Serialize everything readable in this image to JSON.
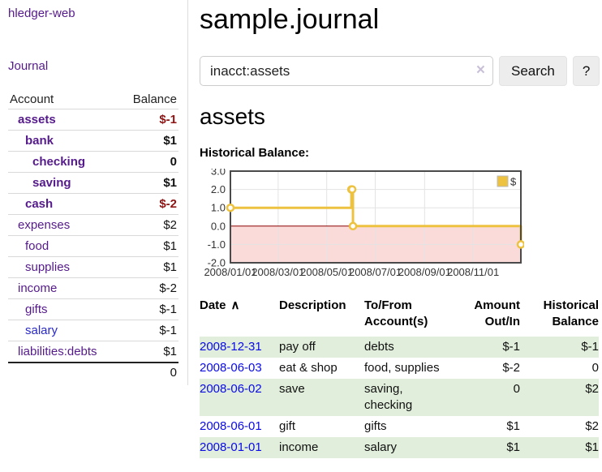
{
  "sidebar": {
    "brand": "hledger-web",
    "journal_link": "Journal",
    "accounts_table": {
      "headers": [
        "Account",
        "Balance"
      ],
      "rows": [
        {
          "name": "assets",
          "indent": 0,
          "bold": true,
          "name_color": "purple",
          "balance": "$-1",
          "negative": true
        },
        {
          "name": "bank",
          "indent": 1,
          "bold": true,
          "name_color": "purple",
          "balance": "$1",
          "negative": false
        },
        {
          "name": "checking",
          "indent": 2,
          "bold": true,
          "name_color": "purple",
          "balance": "0",
          "negative": false
        },
        {
          "name": "saving",
          "indent": 2,
          "bold": true,
          "name_color": "purple",
          "balance": "$1",
          "negative": false
        },
        {
          "name": "cash",
          "indent": 1,
          "bold": true,
          "name_color": "purple",
          "balance": "$-2",
          "negative": true
        },
        {
          "name": "expenses",
          "indent": 0,
          "bold": false,
          "name_color": "purple",
          "balance": "$2",
          "negative": false
        },
        {
          "name": "food",
          "indent": 1,
          "bold": false,
          "name_color": "purple",
          "balance": "$1",
          "negative": false
        },
        {
          "name": "supplies",
          "indent": 1,
          "bold": false,
          "name_color": "purple",
          "balance": "$1",
          "negative": false
        },
        {
          "name": "income",
          "indent": 0,
          "bold": false,
          "name_color": "purple",
          "balance": "$-2",
          "negative": true
        },
        {
          "name": "gifts",
          "indent": 1,
          "bold": false,
          "name_color": "purple",
          "balance": "$-1",
          "negative": true
        },
        {
          "name": "salary",
          "indent": 1,
          "bold": false,
          "name_color": "blue",
          "balance": "$-1",
          "negative": true
        },
        {
          "name": "liabilities:debts",
          "indent": 0,
          "bold": false,
          "name_color": "purple",
          "balance": "$1",
          "negative": false
        }
      ],
      "total": "0"
    }
  },
  "main": {
    "title": "sample.journal",
    "search": {
      "value": "inacct:assets",
      "clear_icon": "×",
      "button_label": "Search",
      "help_label": "?"
    },
    "account_heading": "assets",
    "chart_label": "Historical Balance:"
  },
  "chart_data": {
    "type": "line",
    "title": "Historical Balance",
    "steps": true,
    "ylim": [
      -2,
      3
    ],
    "x_domain": [
      "2008-01-01",
      "2008-12-31"
    ],
    "y_ticks": [
      "3.0",
      "2.0",
      "1.0",
      "0.0",
      "-1.0",
      "-2.0"
    ],
    "x_ticks": [
      {
        "label": "2008/01/01",
        "date": "2008-01-01"
      },
      {
        "label": "2008/03/01",
        "date": "2008-03-01"
      },
      {
        "label": "2008/05/01",
        "date": "2008-05-01"
      },
      {
        "label": "2008/07/01",
        "date": "2008-07-01"
      },
      {
        "label": "2008/09/01",
        "date": "2008-09-01"
      },
      {
        "label": "2008/11/01",
        "date": "2008-11-01"
      }
    ],
    "series": [
      {
        "name": "$",
        "color": "#edc240",
        "points": [
          {
            "date": "2008-01-01",
            "value": 1
          },
          {
            "date": "2008-06-01",
            "value": 2
          },
          {
            "date": "2008-06-02",
            "value": 2
          },
          {
            "date": "2008-06-03",
            "value": 0
          },
          {
            "date": "2008-12-31",
            "value": -1
          }
        ]
      }
    ],
    "legend": {
      "label": "$",
      "position": "top-right"
    },
    "grid_on": true,
    "grid_color": "#e3e3e3",
    "border_color": "#4a4a4a",
    "zero_line_color": "#8b0000",
    "negative_region_color": "#fbdada"
  },
  "register": {
    "headers": [
      "Date",
      "Description",
      "To/From Account(s)",
      "Amount Out/In",
      "Historical Balance"
    ],
    "sort_indicator": "∧",
    "rows": [
      {
        "date": "2008-12-31",
        "description": "pay off",
        "accounts": "debts",
        "amount": "$-1",
        "amount_negative": true,
        "balance": "$-1",
        "balance_negative": true
      },
      {
        "date": "2008-06-03",
        "description": "eat & shop",
        "accounts": "food, supplies",
        "amount": "$-2",
        "amount_negative": true,
        "balance": "0",
        "balance_negative": false
      },
      {
        "date": "2008-06-02",
        "description": "save",
        "accounts": "saving, checking",
        "amount": "0",
        "amount_negative": false,
        "balance": "$2",
        "balance_negative": false
      },
      {
        "date": "2008-06-01",
        "description": "gift",
        "accounts": "gifts",
        "amount": "$1",
        "amount_negative": false,
        "balance": "$2",
        "balance_negative": false
      },
      {
        "date": "2008-01-01",
        "description": "income",
        "accounts": "salary",
        "amount": "$1",
        "amount_negative": false,
        "balance": "$1",
        "balance_negative": false
      }
    ]
  }
}
